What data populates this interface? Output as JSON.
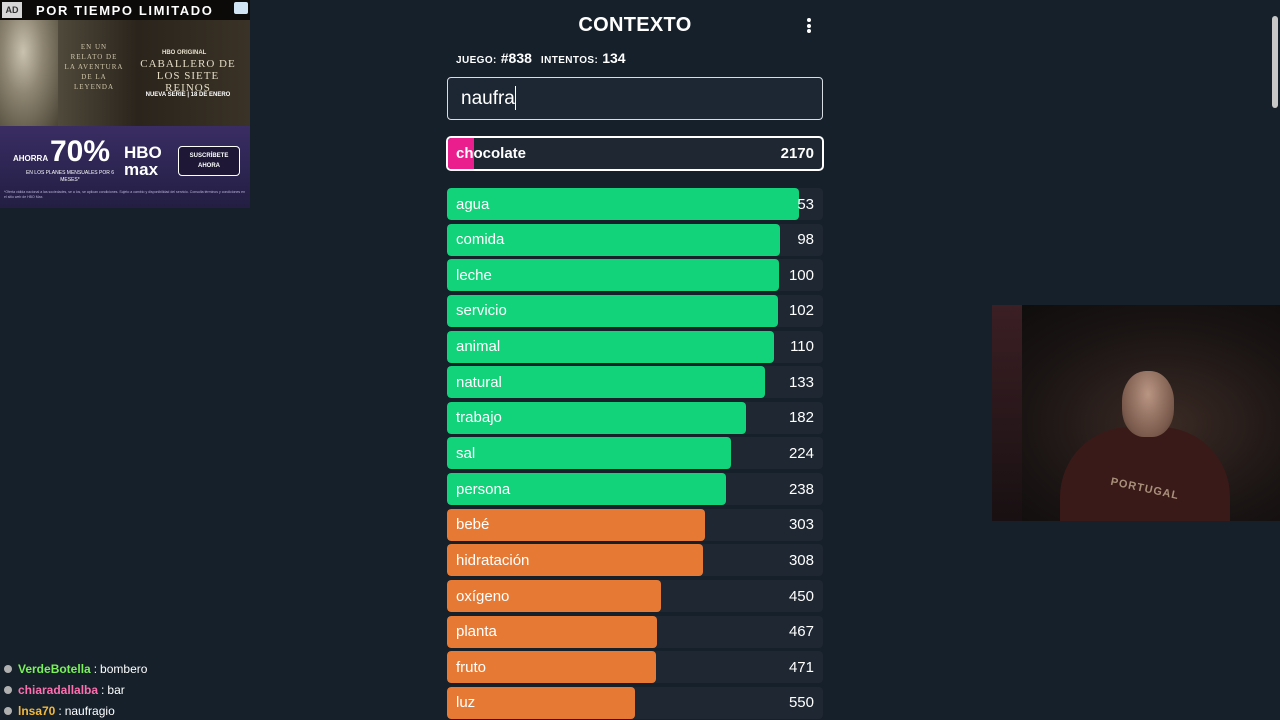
{
  "ad": {
    "badge": "AD",
    "headline": "POR TIEMPO LIMITADO",
    "verse": "EN UN RELATO DE LA AVENTURA DE LA LEYENDA",
    "brand_small": "HBO ORIGINAL",
    "show_title": "CABALLERO DE LOS SIETE REINOS",
    "release": "NUEVA SERIE | 18 DE ENERO",
    "save_label": "AHORRA",
    "discount": "70%",
    "plans_text": "EN LOS PLANES MENSUALES POR 6 MESES*",
    "brand": "HBO max",
    "cta": "SUSCRÍBETE AHORA",
    "fine_print": "*Oferta válida nacional a las sociedades, se a los, se aplican condiciones. Sujeto a cambio y disponibilidad del servicio. Consulta términos y condiciones en el sitio web de HBO Max."
  },
  "game": {
    "title": "CONTEXTO",
    "game_label": "JUEGO:",
    "game_number": "#838",
    "attempts_label": "INTENTOS:",
    "attempts": "134",
    "input_value": "naufra",
    "current_guess": {
      "word": "chocolate",
      "rank": "2170",
      "fill_fraction": 0.07,
      "color": "#ea1e8c"
    },
    "guesses": [
      {
        "word": "agua",
        "rank": "53",
        "fill_fraction": 0.935,
        "color": "#12d27a"
      },
      {
        "word": "comida",
        "rank": "98",
        "fill_fraction": 0.885,
        "color": "#12d27a"
      },
      {
        "word": "leche",
        "rank": "100",
        "fill_fraction": 0.882,
        "color": "#12d27a"
      },
      {
        "word": "servicio",
        "rank": "102",
        "fill_fraction": 0.88,
        "color": "#12d27a"
      },
      {
        "word": "animal",
        "rank": "110",
        "fill_fraction": 0.87,
        "color": "#12d27a"
      },
      {
        "word": "natural",
        "rank": "133",
        "fill_fraction": 0.847,
        "color": "#12d27a"
      },
      {
        "word": "trabajo",
        "rank": "182",
        "fill_fraction": 0.795,
        "color": "#12d27a"
      },
      {
        "word": "sal",
        "rank": "224",
        "fill_fraction": 0.755,
        "color": "#12d27a"
      },
      {
        "word": "persona",
        "rank": "238",
        "fill_fraction": 0.742,
        "color": "#12d27a"
      },
      {
        "word": "bebé",
        "rank": "303",
        "fill_fraction": 0.685,
        "color": "#e67a35"
      },
      {
        "word": "hidratación",
        "rank": "308",
        "fill_fraction": 0.682,
        "color": "#e67a35"
      },
      {
        "word": "oxígeno",
        "rank": "450",
        "fill_fraction": 0.57,
        "color": "#e67a35"
      },
      {
        "word": "planta",
        "rank": "467",
        "fill_fraction": 0.558,
        "color": "#e67a35"
      },
      {
        "word": "fruto",
        "rank": "471",
        "fill_fraction": 0.555,
        "color": "#e67a35"
      },
      {
        "word": "luz",
        "rank": "550",
        "fill_fraction": 0.5,
        "color": "#e67a35"
      }
    ]
  },
  "webcam": {
    "shirt_text": "PORTUGAL"
  },
  "chat": {
    "messages": [
      {
        "user": "VerdeBotella",
        "message": "bombero",
        "color": "#7bf15a"
      },
      {
        "user": "chiaradallalba",
        "message": "bar",
        "color": "#ff6fb0"
      },
      {
        "user": "lnsa70",
        "message": "naufragio",
        "color": "#f3b93a"
      }
    ]
  }
}
